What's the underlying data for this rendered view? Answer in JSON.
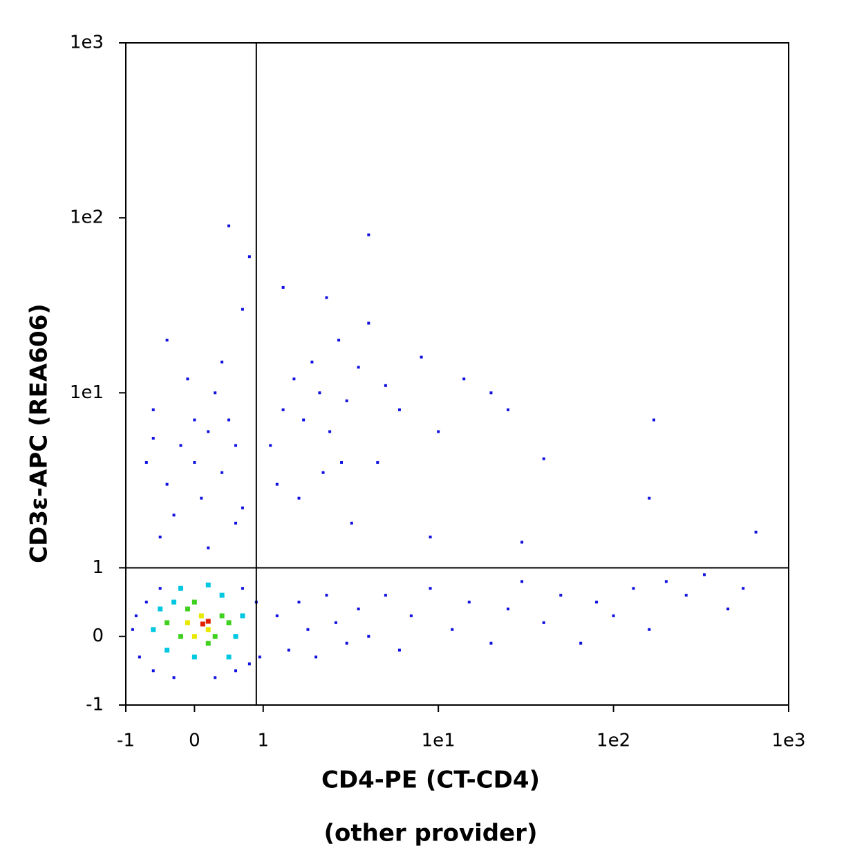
{
  "chart_data": {
    "type": "scatter",
    "xlabel": [
      "CD4-PE (CT-CD4)",
      "(other provider)"
    ],
    "ylabel": "CD3ε-APC (REA606)",
    "xscale": "biexponential",
    "yscale": "biexponential",
    "xlim": [
      -1,
      1000
    ],
    "ylim": [
      -1,
      1000
    ],
    "xticks": [
      -1,
      0,
      1,
      {
        "value": 10,
        "label": "1e1"
      },
      {
        "value": 100,
        "label": "1e2"
      },
      {
        "value": 1000,
        "label": "1e3"
      }
    ],
    "yticks": [
      -1,
      0,
      1,
      {
        "value": 10,
        "label": "1e1"
      },
      {
        "value": 100,
        "label": "1e2"
      },
      {
        "value": 1000,
        "label": "1e3"
      }
    ],
    "gates": {
      "x": 0.9,
      "y": 1
    },
    "series": [
      {
        "color": "#1010e0",
        "x": [
          -0.9,
          -0.8,
          -0.7,
          -0.6,
          -0.5,
          0.6,
          0.8,
          0.9,
          -0.85,
          0.7,
          0.3,
          -0.3,
          0.95,
          1.2,
          1.4,
          1.6,
          1.8,
          2.0,
          2.3,
          2.6,
          3,
          3.5,
          4,
          5,
          6,
          7,
          9,
          12,
          15,
          20,
          25,
          30,
          40,
          50,
          65,
          80,
          100,
          130,
          160,
          200,
          260,
          330,
          450,
          550,
          -0.4,
          -0.2,
          0,
          0.2,
          0.4,
          0.6,
          -0.6,
          -0.3,
          0.1,
          0.3,
          0.5,
          0.7,
          -0.7,
          -0.5,
          0.2,
          0.6,
          -0.1,
          0.4,
          -0.4,
          0.7,
          0.5,
          0.8,
          -0.6,
          0.0,
          1.1,
          1.3,
          1.5,
          1.7,
          1.9,
          2.1,
          2.4,
          2.7,
          3,
          3.5,
          1.2,
          1.6,
          2.2,
          2.8,
          4,
          5,
          6,
          8,
          10,
          14,
          20,
          25,
          40,
          4.5,
          3.2,
          9,
          30,
          170,
          160,
          650,
          1.3,
          2.3,
          4
        ],
        "y": [
          0.1,
          -0.3,
          0.5,
          -0.5,
          0.7,
          -0.5,
          -0.4,
          0.5,
          0.3,
          0.7,
          -0.6,
          -0.6,
          -0.3,
          0.3,
          -0.2,
          0.5,
          0.1,
          -0.3,
          0.6,
          0.2,
          -0.1,
          0.4,
          0.0,
          0.6,
          -0.2,
          0.3,
          0.7,
          0.1,
          0.5,
          -0.1,
          0.4,
          0.8,
          0.2,
          0.6,
          -0.1,
          0.5,
          0.3,
          0.7,
          0.1,
          0.8,
          0.6,
          0.9,
          0.4,
          0.7,
          3,
          5,
          4,
          6,
          3.5,
          5,
          8,
          2,
          2.5,
          10,
          7,
          2.2,
          4,
          1.5,
          1.3,
          1.8,
          12,
          15,
          20,
          30,
          90,
          60,
          5.5,
          7,
          5,
          8,
          12,
          7,
          15,
          10,
          6,
          20,
          9,
          14,
          3,
          2.5,
          3.5,
          4,
          25,
          11,
          8,
          16,
          6,
          12,
          10,
          8,
          4.2,
          4,
          1.8,
          1.5,
          1.4,
          7,
          2.5,
          1.6,
          40,
          35,
          80
        ]
      },
      {
        "color": "#00c8e0",
        "x": [
          -0.6,
          -0.4,
          -0.3,
          0.0,
          0.4,
          0.6,
          0.7,
          -0.5,
          0.5,
          -0.2,
          0.2
        ],
        "y": [
          0.1,
          -0.2,
          0.5,
          -0.3,
          0.6,
          0.0,
          0.3,
          0.4,
          -0.3,
          0.7,
          0.75
        ]
      },
      {
        "color": "#40d020",
        "x": [
          -0.4,
          -0.2,
          0,
          0.3,
          0.4,
          -0.1,
          0.2,
          0.5
        ],
        "y": [
          0.2,
          0.0,
          0.5,
          0.0,
          0.3,
          0.4,
          -0.1,
          0.2
        ]
      },
      {
        "color": "#e8e800",
        "x": [
          -0.1,
          0.1,
          0.2,
          0.0
        ],
        "y": [
          0.2,
          0.3,
          0.1,
          0.0
        ]
      },
      {
        "color": "#e02000",
        "x": [
          0.12,
          0.2
        ],
        "y": [
          0.18,
          0.22
        ]
      }
    ]
  }
}
